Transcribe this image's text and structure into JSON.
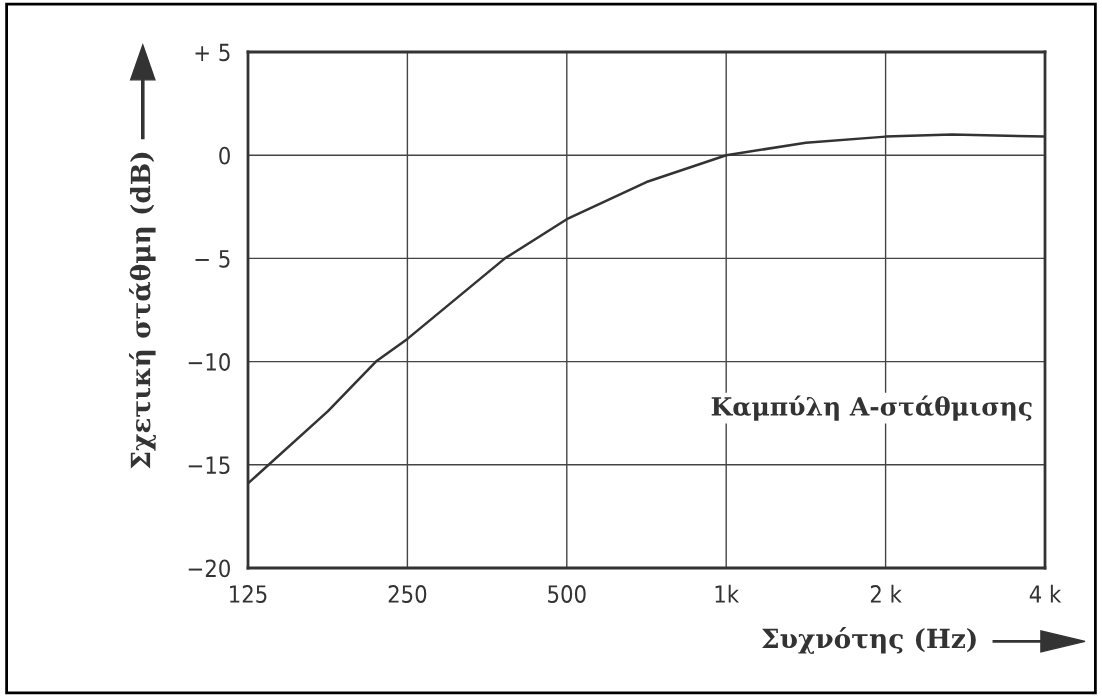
{
  "chart_data": {
    "type": "line",
    "xlabel": "Συχνότης (Hz)",
    "ylabel": "Σχετική στάθμη (dB)",
    "annotations": [
      "Καμπύλη A-στάθμισης"
    ],
    "x": [
      125,
      177,
      218,
      250,
      382,
      500,
      707,
      1000,
      1414,
      2000,
      2670,
      4000
    ],
    "series": [
      {
        "color": "#333333",
        "values": [
          -15.9,
          -12.4,
          -10,
          -8.9,
          -5,
          -3.1,
          -1.3,
          0,
          0.6,
          0.9,
          1.0,
          0.9
        ]
      }
    ],
    "log": "x",
    "xlim": [
      125,
      4000
    ],
    "xticks": [
      125,
      250,
      500,
      {
        "value": 1000,
        "label": "1k"
      },
      {
        "value": 2000,
        "label": "2 k"
      },
      {
        "value": 4000,
        "label": "4 k"
      }
    ],
    "ylim": [
      -20,
      5
    ],
    "yticks": [
      {
        "value": -20,
        "label": "−20"
      },
      {
        "value": -15,
        "label": "−15"
      },
      {
        "value": -10,
        "label": "−10"
      },
      {
        "value": -5,
        "label": "− 5"
      },
      0,
      {
        "value": 5,
        "label": "+ 5"
      }
    ],
    "grid": true,
    "marker": "none",
    "line_style": "solid"
  }
}
